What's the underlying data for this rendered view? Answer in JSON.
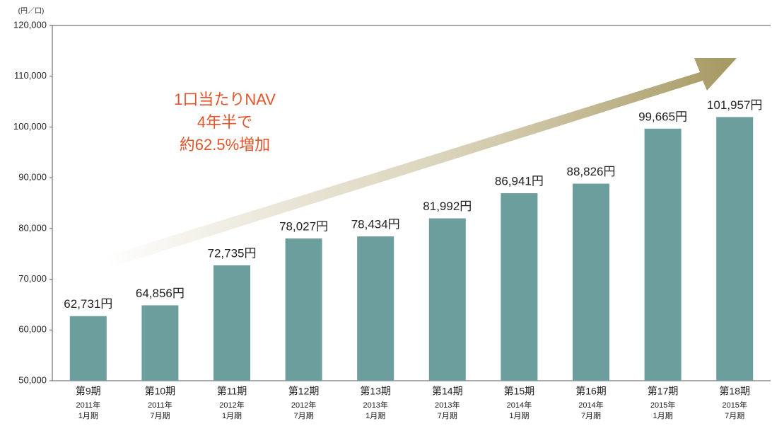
{
  "chart_data": {
    "type": "bar",
    "unit_label": "(円／口)",
    "annotation": [
      "1口当たりNAV",
      "4年半で",
      "約62.5%増加"
    ],
    "categories": [
      "第9期",
      "第10期",
      "第11期",
      "第12期",
      "第13期",
      "第14期",
      "第15期",
      "第16期",
      "第17期",
      "第18期"
    ],
    "sublabels": [
      [
        "2011年",
        "1月期"
      ],
      [
        "2011年",
        "7月期"
      ],
      [
        "2012年",
        "1月期"
      ],
      [
        "2012年",
        "7月期"
      ],
      [
        "2013年",
        "1月期"
      ],
      [
        "2013年",
        "7月期"
      ],
      [
        "2014年",
        "1月期"
      ],
      [
        "2014年",
        "7月期"
      ],
      [
        "2015年",
        "1月期"
      ],
      [
        "2015年",
        "7月期"
      ]
    ],
    "values": [
      62731,
      64856,
      72735,
      78027,
      78434,
      81992,
      86941,
      88826,
      99665,
      101957
    ],
    "value_labels": [
      "62,731円",
      "64,856円",
      "72,735円",
      "78,027円",
      "78,434円",
      "81,992円",
      "86,941円",
      "88,826円",
      "99,665円",
      "101,957円"
    ],
    "color": "#6b9e9c",
    "ylim": [
      50000,
      120000
    ],
    "yticks": [
      {
        "value": 50000,
        "label": "50,000"
      },
      {
        "value": 60000,
        "label": "60,000"
      },
      {
        "value": 70000,
        "label": "70,000"
      },
      {
        "value": 80000,
        "label": "80,000"
      },
      {
        "value": 90000,
        "label": "90,000"
      },
      {
        "value": 100000,
        "label": "100,000"
      },
      {
        "value": 110000,
        "label": "110,000"
      },
      {
        "value": 120000,
        "label": "120,000"
      }
    ],
    "grid": false
  }
}
